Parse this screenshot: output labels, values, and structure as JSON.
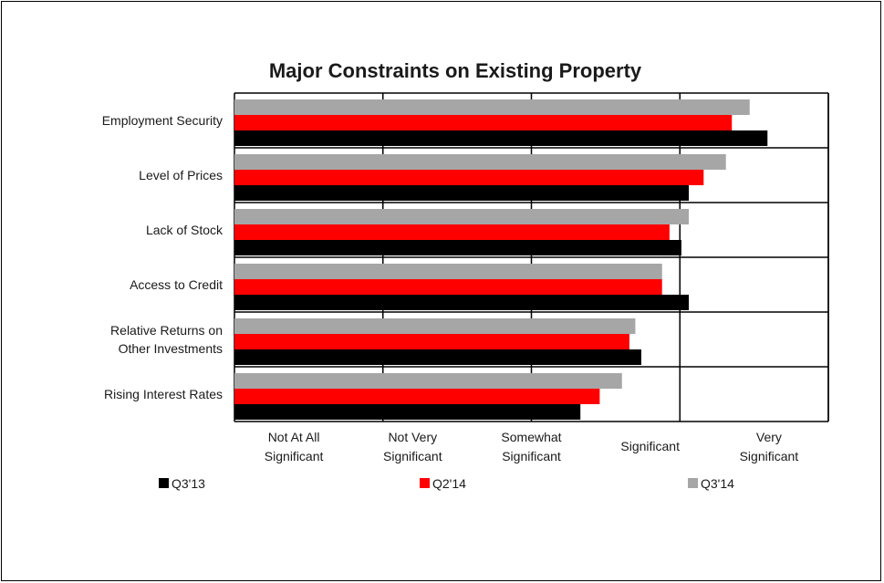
{
  "chart_data": {
    "type": "bar",
    "orientation": "horizontal",
    "title": "Major Constraints on Existing Property",
    "categories": [
      [
        "Employment Security"
      ],
      [
        "Level of Prices"
      ],
      [
        "Lack of Stock"
      ],
      [
        "Access to Credit"
      ],
      [
        "Relative Returns on",
        "Other Investments"
      ],
      [
        "Rising Interest Rates"
      ]
    ],
    "x_ticks": [
      [
        "Not At All",
        "Significant"
      ],
      [
        "Not Very",
        "Significant"
      ],
      [
        "Somewhat",
        "Significant"
      ],
      [
        "Significant"
      ],
      [
        "Very",
        "Significant"
      ]
    ],
    "xlim": [
      1,
      5
    ],
    "grid": true,
    "legend_position": "bottom",
    "series": [
      {
        "name": "Q3'14",
        "color": "#a6a6a6",
        "values": [
          4.47,
          4.31,
          4.06,
          3.88,
          3.7,
          3.61
        ]
      },
      {
        "name": "Q2'14",
        "color": "#ff0000",
        "values": [
          4.35,
          4.16,
          3.93,
          3.88,
          3.66,
          3.46
        ]
      },
      {
        "name": "Q3'13",
        "color": "#000000",
        "values": [
          4.59,
          4.06,
          4.01,
          4.06,
          3.74,
          3.33
        ]
      }
    ],
    "legend_order": [
      "Q3'13",
      "Q2'14",
      "Q3'14"
    ]
  }
}
